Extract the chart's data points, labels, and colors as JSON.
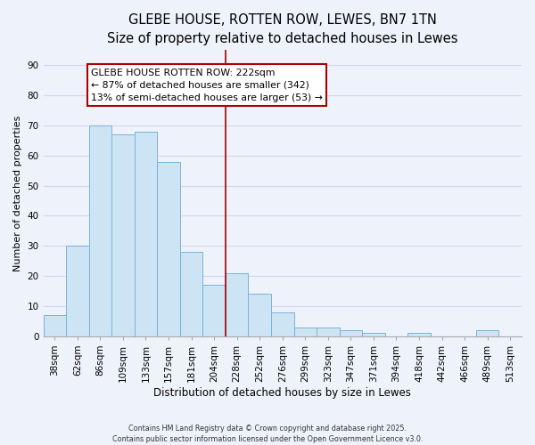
{
  "title": "GLEBE HOUSE, ROTTEN ROW, LEWES, BN7 1TN",
  "subtitle": "Size of property relative to detached houses in Lewes",
  "xlabel": "Distribution of detached houses by size in Lewes",
  "ylabel": "Number of detached properties",
  "bar_labels": [
    "38sqm",
    "62sqm",
    "86sqm",
    "109sqm",
    "133sqm",
    "157sqm",
    "181sqm",
    "204sqm",
    "228sqm",
    "252sqm",
    "276sqm",
    "299sqm",
    "323sqm",
    "347sqm",
    "371sqm",
    "394sqm",
    "418sqm",
    "442sqm",
    "466sqm",
    "489sqm",
    "513sqm"
  ],
  "bar_values": [
    7,
    30,
    70,
    67,
    68,
    58,
    28,
    17,
    21,
    14,
    8,
    3,
    3,
    2,
    1,
    0,
    1,
    0,
    0,
    2,
    0
  ],
  "bar_color": "#cde4f5",
  "bar_edge_color": "#7ab3d4",
  "vline_color": "#aa0000",
  "annotation_title": "GLEBE HOUSE ROTTEN ROW: 222sqm",
  "annotation_line1": "← 87% of detached houses are smaller (342)",
  "annotation_line2": "13% of semi-detached houses are larger (53) →",
  "annotation_box_color": "#ffffff",
  "annotation_box_edge_color": "#aa0000",
  "ylim": [
    0,
    95
  ],
  "yticks": [
    0,
    10,
    20,
    30,
    40,
    50,
    60,
    70,
    80,
    90
  ],
  "footer_line1": "Contains HM Land Registry data © Crown copyright and database right 2025.",
  "footer_line2": "Contains public sector information licensed under the Open Government Licence v3.0.",
  "background_color": "#eef2fb",
  "grid_color": "#d0d8ee",
  "title_fontsize": 10.5,
  "subtitle_fontsize": 9.5,
  "annotation_fontsize": 7.8,
  "xlabel_fontsize": 8.5,
  "ylabel_fontsize": 8,
  "tick_fontsize": 7.5,
  "footer_fontsize": 5.8
}
